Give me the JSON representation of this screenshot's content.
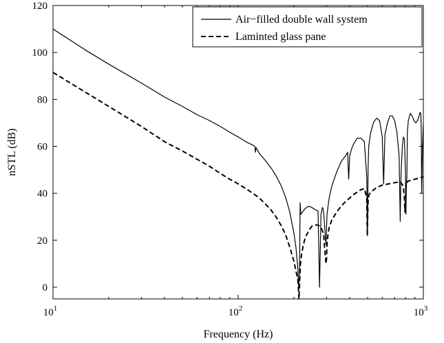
{
  "chart_data": {
    "type": "line",
    "title": "",
    "xlabel": "Frequency (Hz)",
    "ylabel": "nSTL (dB)",
    "xscale": "log",
    "xlim": [
      10,
      1000
    ],
    "ylim": [
      -5,
      120
    ],
    "xticks": [
      {
        "value": 10,
        "base": "10",
        "exp": "1"
      },
      {
        "value": 100,
        "base": "10",
        "exp": "2"
      },
      {
        "value": 1000,
        "base": "10",
        "exp": "3"
      }
    ],
    "yticks": [
      0,
      20,
      40,
      60,
      80,
      100,
      120
    ],
    "grid": false,
    "legend_position": "top-right",
    "series": [
      {
        "name": "Air−filled double wall system",
        "style": "solid",
        "color": "#000000",
        "x": [
          10,
          15,
          20,
          30,
          40,
          50,
          60,
          70,
          80,
          90,
          100,
          110,
          120,
          123,
          124,
          125,
          126,
          130,
          140,
          150,
          160,
          170,
          180,
          190,
          200,
          205,
          210,
          212,
          214,
          215,
          216,
          218,
          220,
          225,
          230,
          240,
          250,
          260,
          270,
          275,
          280,
          285,
          288,
          290,
          292,
          295,
          298,
          300,
          302,
          305,
          310,
          320,
          340,
          360,
          380,
          390,
          395,
          400,
          410,
          420,
          440,
          460,
          480,
          495,
          498,
          500,
          503,
          507,
          520,
          540,
          560,
          580,
          600,
          610,
          620,
          640,
          660,
          680,
          700,
          720,
          740,
          750,
          755,
          760,
          770,
          780,
          790,
          800,
          805,
          810,
          815,
          820,
          830,
          850,
          870,
          890,
          910,
          930,
          950,
          960,
          970,
          975,
          980,
          990,
          1000
        ],
        "y": [
          110,
          101,
          95,
          87,
          81,
          77,
          73.5,
          71,
          68.5,
          66,
          64,
          62,
          60.5,
          60,
          57.5,
          59.5,
          59,
          57,
          54,
          51,
          47.5,
          43.5,
          38.5,
          32,
          23,
          17,
          8,
          0.5,
          4,
          15,
          36,
          31,
          31.5,
          32.5,
          33.5,
          34.5,
          34,
          33,
          32.5,
          0,
          31,
          34,
          33,
          31,
          28,
          22,
          18,
          25,
          31,
          34,
          38,
          43,
          49,
          53.5,
          56,
          57.5,
          46,
          56,
          59,
          61,
          63.5,
          63.5,
          62,
          47,
          22,
          28,
          50,
          60,
          66,
          70.5,
          72,
          71,
          64,
          44,
          65,
          70,
          73,
          73,
          71,
          66,
          56,
          28,
          44,
          50,
          60,
          64,
          63,
          50,
          31,
          44,
          47,
          66,
          71,
          74,
          73,
          71,
          70,
          71,
          73,
          74.5,
          74,
          66,
          40,
          60,
          70
        ]
      },
      {
        "name": "Laminted glass pane",
        "style": "dashed",
        "color": "#000000",
        "x": [
          10,
          15,
          20,
          30,
          40,
          50,
          60,
          70,
          80,
          90,
          100,
          110,
          120,
          130,
          140,
          150,
          160,
          170,
          180,
          190,
          200,
          205,
          210,
          213,
          215,
          217,
          220,
          225,
          230,
          240,
          250,
          260,
          270,
          280,
          285,
          290,
          292,
          295,
          298,
          300,
          302,
          305,
          310,
          320,
          340,
          360,
          380,
          400,
          420,
          440,
          460,
          480,
          495,
          498,
          500,
          502,
          505,
          510,
          520,
          540,
          560,
          580,
          600,
          650,
          700,
          750,
          780,
          790,
          795,
          800,
          805,
          810,
          820,
          850,
          900,
          950,
          1000
        ],
        "y": [
          91.5,
          83,
          77,
          68.5,
          62,
          58,
          54.5,
          51.5,
          48.5,
          46,
          44,
          42,
          40,
          38,
          35.5,
          33,
          30,
          26.5,
          22.5,
          17,
          11,
          7,
          3,
          -5,
          3,
          10,
          14,
          18,
          21,
          24,
          26,
          26.5,
          26.5,
          25.5,
          24,
          21.5,
          18,
          14,
          10,
          12,
          18,
          22,
          25.5,
          28.5,
          32,
          34.5,
          36.5,
          38,
          39.5,
          40.5,
          41.5,
          42,
          38,
          22,
          28,
          35,
          38,
          39.5,
          40.5,
          41.5,
          42.5,
          43,
          43.5,
          44,
          44.5,
          45,
          43,
          38,
          32,
          36,
          42,
          44,
          45,
          45.5,
          46,
          46.5,
          47
        ]
      }
    ]
  }
}
